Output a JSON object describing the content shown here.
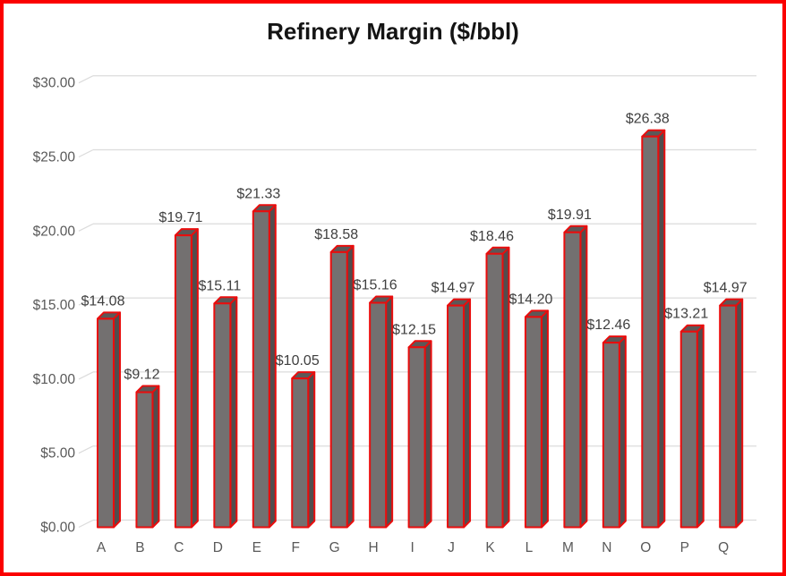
{
  "title": "Refinery Margin ($/bbl)",
  "colors": {
    "frame": "#fb0000",
    "bar_front": "#737070",
    "bar_top": "#5c5858",
    "bar_side": "#514d4d",
    "bar_outline": "#e90d0d",
    "gridline": "#dcdcdc",
    "axis_label": "#595959",
    "data_label": "#3f3f3f",
    "title": "#141414",
    "background": "#ffffff"
  },
  "chart_data": {
    "type": "bar",
    "style": "3d-column",
    "title": "Refinery Margin ($/bbl)",
    "xlabel": "",
    "ylabel": "",
    "legend": "none",
    "grid": true,
    "categories": [
      "A",
      "B",
      "C",
      "D",
      "E",
      "F",
      "G",
      "H",
      "I",
      "J",
      "K",
      "L",
      "M",
      "N",
      "O",
      "P",
      "Q"
    ],
    "values": [
      14.08,
      9.12,
      19.71,
      15.11,
      21.33,
      10.05,
      18.58,
      15.16,
      12.15,
      14.97,
      18.46,
      14.2,
      19.91,
      12.46,
      26.38,
      13.21,
      14.97
    ],
    "data_labels": [
      "$14.08",
      "$9.12",
      "$19.71",
      "$15.11",
      "$21.33",
      "$10.05",
      "$18.58",
      "$15.16",
      "$12.15",
      "$14.97",
      "$18.46",
      "$14.20",
      "$19.91",
      "$12.46",
      "$26.38",
      "$13.21",
      "$14.97"
    ],
    "y_ticks": [
      "$0.00",
      "$5.00",
      "$10.00",
      "$15.00",
      "$20.00",
      "$25.00",
      "$30.00"
    ],
    "y_tick_step": 5,
    "ylim": [
      0,
      30
    ]
  }
}
